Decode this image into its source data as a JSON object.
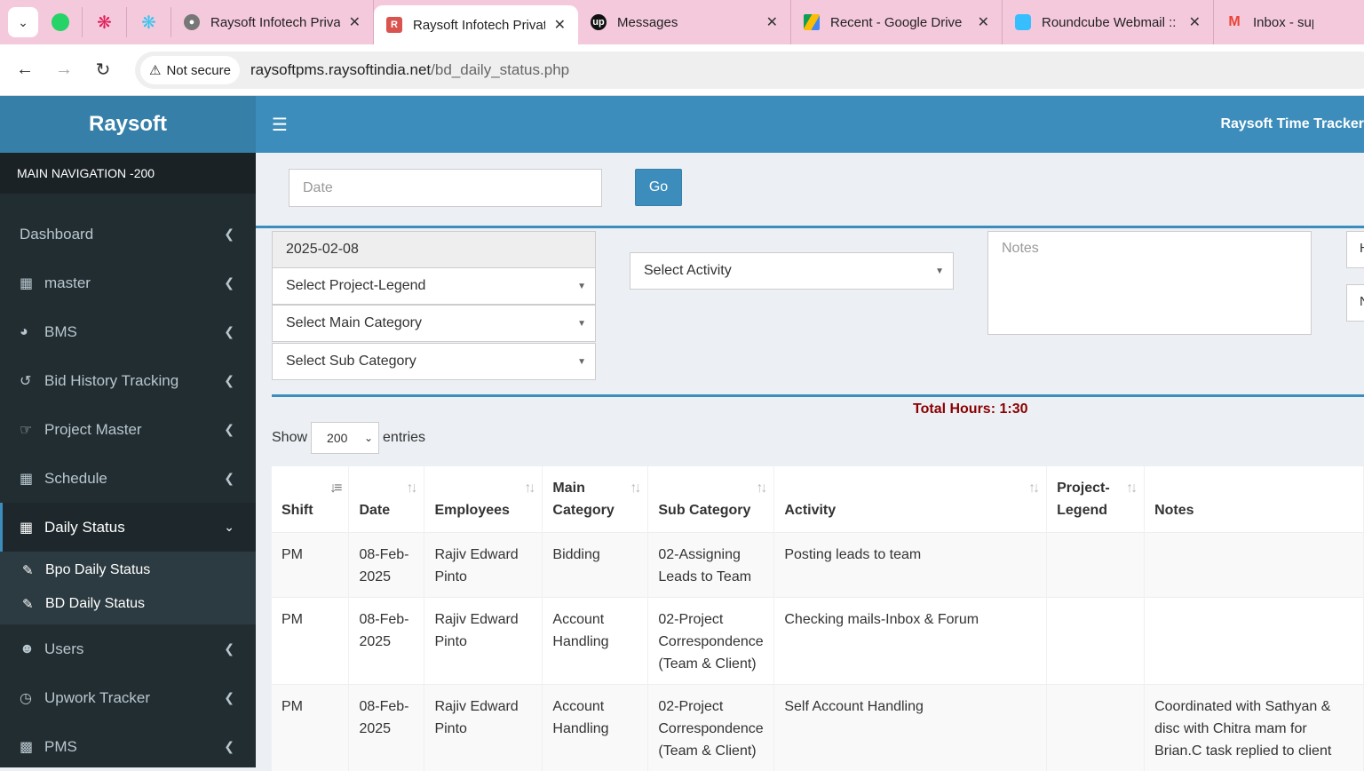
{
  "browser": {
    "tabs": [
      {
        "title": "Raysoft Infotech Privat",
        "active": false,
        "favicon": "globe-icon"
      },
      {
        "title": "Raysoft Infotech Privat",
        "active": true,
        "favicon": "raysoft-icon"
      },
      {
        "title": "Messages",
        "active": false,
        "favicon": "upwork-icon"
      },
      {
        "title": "Recent - Google Drive",
        "active": false,
        "favicon": "google-drive-icon"
      },
      {
        "title": "Roundcube Webmail ::",
        "active": false,
        "favicon": "roundcube-icon"
      },
      {
        "title": "Inbox - suppo",
        "active": false,
        "favicon": "gmail-icon"
      }
    ],
    "security_label": "Not secure",
    "url_host": "raysoftpms.raysoftindia.net",
    "url_path": "/bd_daily_status.php"
  },
  "sidebar": {
    "brand": "Raysoft",
    "nav_header": "MAIN NAVIGATION -200",
    "items": [
      {
        "label": "Dashboard",
        "icon": ""
      },
      {
        "label": "master",
        "icon": "grid-icon"
      },
      {
        "label": "BMS",
        "icon": "pie-chart-icon"
      },
      {
        "label": "Bid History Tracking",
        "icon": "history-icon"
      },
      {
        "label": "Project Master",
        "icon": "hand-point-icon"
      },
      {
        "label": "Schedule",
        "icon": "table-icon"
      },
      {
        "label": "Daily Status",
        "icon": "table-icon"
      },
      {
        "label": "Users",
        "icon": "users-icon"
      },
      {
        "label": "Upwork Tracker",
        "icon": "clock-icon"
      },
      {
        "label": "PMS",
        "icon": "calendar-icon"
      }
    ],
    "submenu": [
      {
        "label": "Bpo Daily Status",
        "icon": "edit-icon"
      },
      {
        "label": "BD Daily Status",
        "icon": "edit-icon"
      }
    ]
  },
  "topbar": {
    "title": "Raysoft Time Tracker"
  },
  "filter": {
    "date_placeholder": "Date",
    "go_label": "Go"
  },
  "form": {
    "date_value": "2025-02-08",
    "project_legend": "Select Project-Legend",
    "main_category": "Select Main Category",
    "sub_category": "Select Sub Category",
    "activity": "Select Activity",
    "notes_placeholder": "Notes",
    "stub_1": "H",
    "stub_2": "N"
  },
  "table": {
    "total_hours": "Total Hours: 1:30",
    "show_label": "Show",
    "entries_value": "200",
    "entries_label": "entries",
    "columns": [
      "Shift",
      "Date",
      "Employees",
      "Main Category",
      "Sub Category",
      "Activity",
      "Project-Legend",
      "Notes"
    ],
    "rows": [
      {
        "shift": "PM",
        "date": "08-Feb-2025",
        "employee": "Rajiv Edward Pinto",
        "main": "Bidding",
        "sub": "02-Assigning Leads to Team",
        "activity": "Posting leads to team",
        "legend": "",
        "notes": ""
      },
      {
        "shift": "PM",
        "date": "08-Feb-2025",
        "employee": "Rajiv Edward Pinto",
        "main": "Account Handling",
        "sub": "02-Project Correspondence (Team & Client)",
        "activity": "Checking mails-Inbox & Forum",
        "legend": "",
        "notes": ""
      },
      {
        "shift": "PM",
        "date": "08-Feb-2025",
        "employee": "Rajiv Edward Pinto",
        "main": "Account Handling",
        "sub": "02-Project Correspondence (Team & Client)",
        "activity": "Self Account Handling",
        "legend": "",
        "notes": "Coordinated with Sathyan & disc with Chitra mam for Brian.C task replied to client"
      }
    ]
  },
  "colors": {
    "primary": "#3c8dbc",
    "brand_bg": "#367fa9",
    "sidebar_bg": "#222d32",
    "total_color": "#8b0000",
    "tabbar_bg": "#f5c9dc"
  }
}
